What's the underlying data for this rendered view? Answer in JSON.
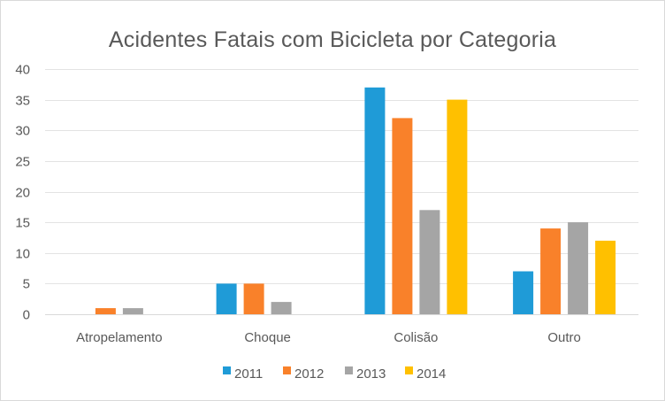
{
  "chart_data": {
    "type": "bar",
    "title": "Acidentes Fatais com Bicicleta por Categoria",
    "xlabel": "",
    "ylabel": "",
    "ylim": [
      0,
      40
    ],
    "yticks": [
      0,
      5,
      10,
      15,
      20,
      25,
      30,
      35,
      40
    ],
    "grid": true,
    "legend_position": "bottom",
    "categories": [
      "Atropelamento",
      "Choque",
      "Colisão",
      "Outro"
    ],
    "series": [
      {
        "name": "2011",
        "color": "#1f9bd7",
        "values": [
          0,
          5,
          37,
          7
        ]
      },
      {
        "name": "2012",
        "color": "#f9812a",
        "values": [
          1,
          5,
          32,
          14
        ]
      },
      {
        "name": "2013",
        "color": "#a5a5a5",
        "values": [
          1,
          2,
          17,
          15
        ]
      },
      {
        "name": "2014",
        "color": "#ffc000",
        "values": [
          0,
          0,
          35,
          12
        ]
      }
    ]
  }
}
